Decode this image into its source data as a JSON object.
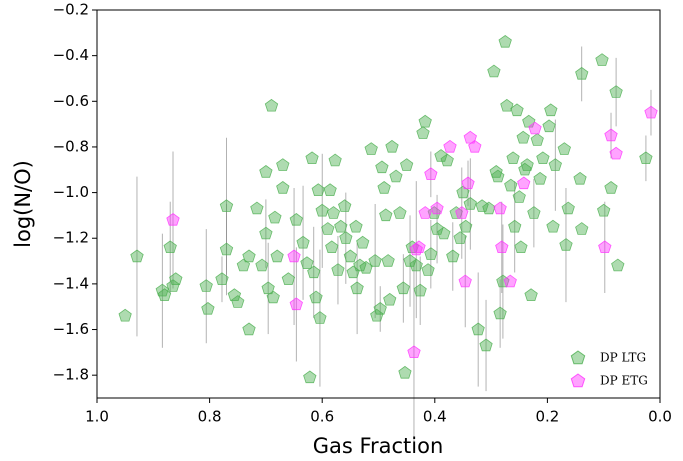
{
  "chart_data": {
    "type": "scatter",
    "xlabel": "Gas Fraction",
    "ylabel": "log(N/O)",
    "xlim": [
      1.0,
      0.0
    ],
    "ylim": [
      -1.9,
      -0.2
    ],
    "xticks": [
      {
        "value": 1,
        "label": "1.0"
      },
      0.8,
      0.6,
      0.4,
      0.2,
      {
        "value": 0,
        "label": "0.0"
      }
    ],
    "yticks": [
      {
        "value": -0.2,
        "label": "−0.2"
      },
      {
        "value": -0.4,
        "label": "−0.4"
      },
      {
        "value": -0.6,
        "label": "−0.6"
      },
      {
        "value": -0.8,
        "label": "−0.8"
      },
      {
        "value": -1.0,
        "label": "−1.0"
      },
      {
        "value": -1.2,
        "label": "−1.2"
      },
      {
        "value": -1.4,
        "label": "−1.4"
      },
      {
        "value": -1.6,
        "label": "−1.6"
      },
      {
        "value": -1.8,
        "label": "−1.8"
      }
    ],
    "legend": "lower right",
    "series": [
      {
        "name": "DP LTG",
        "color": "#4caf50",
        "x": [
          0.95,
          0.929,
          0.884,
          0.88,
          0.87,
          0.865,
          0.86,
          0.806,
          0.803,
          0.778,
          0.77,
          0.77,
          0.756,
          0.75,
          0.74,
          0.73,
          0.73,
          0.716,
          0.707,
          0.7,
          0.7,
          0.69,
          0.696,
          0.687,
          0.684,
          0.68,
          0.67,
          0.67,
          0.66,
          0.646,
          0.634,
          0.627,
          0.622,
          0.618,
          0.615,
          0.611,
          0.607,
          0.604,
          0.6,
          0.59,
          0.586,
          0.583,
          0.58,
          0.577,
          0.572,
          0.567,
          0.56,
          0.558,
          0.55,
          0.545,
          0.54,
          0.538,
          0.533,
          0.528,
          0.522,
          0.513,
          0.506,
          0.503,
          0.497,
          0.494,
          0.49,
          0.487,
          0.483,
          0.48,
          0.476,
          0.469,
          0.462,
          0.456,
          0.453,
          0.45,
          0.444,
          0.44,
          0.433,
          0.426,
          0.421,
          0.417,
          0.412,
          0.407,
          0.401,
          0.396,
          0.389,
          0.384,
          0.378,
          0.368,
          0.362,
          0.355,
          0.35,
          0.345,
          0.337,
          0.323,
          0.316,
          0.309,
          0.304,
          0.295,
          0.291,
          0.288,
          0.284,
          0.279,
          0.275,
          0.272,
          0.265,
          0.261,
          0.258,
          0.254,
          0.25,
          0.247,
          0.243,
          0.24,
          0.236,
          0.233,
          0.229,
          0.224,
          0.218,
          0.213,
          0.208,
          0.197,
          0.194,
          0.19,
          0.186,
          0.17,
          0.167,
          0.163,
          0.142,
          0.139,
          0.139,
          0.103,
          0.1,
          0.087,
          0.078,
          0.075,
          0.025
        ],
        "values": [
          -1.54,
          -1.28,
          -1.43,
          -1.45,
          -1.24,
          -1.41,
          -1.38,
          -1.41,
          -1.51,
          -1.38,
          -1.06,
          -1.25,
          -1.45,
          -1.48,
          -1.32,
          -1.28,
          -1.6,
          -1.07,
          -1.32,
          -1.18,
          -0.91,
          -0.62,
          -1.42,
          -1.46,
          -1.11,
          -1.28,
          -0.88,
          -0.98,
          -1.38,
          -1.12,
          -1.22,
          -1.31,
          -1.81,
          -0.85,
          -1.35,
          -1.46,
          -0.99,
          -1.55,
          -1.08,
          -1.16,
          -0.99,
          -1.24,
          -1.09,
          -0.86,
          -1.34,
          -1.15,
          -1.06,
          -1.2,
          -1.28,
          -1.35,
          -1.15,
          -1.42,
          -1.32,
          -1.22,
          -1.33,
          -0.81,
          -1.3,
          -1.54,
          -1.51,
          -0.89,
          -0.98,
          -1.1,
          -1.3,
          -1.47,
          -0.8,
          -0.93,
          -1.09,
          -1.42,
          -1.79,
          -0.88,
          -1.3,
          -1.24,
          -1.32,
          -1.43,
          -0.74,
          -0.69,
          -1.34,
          -1.27,
          -1.09,
          -1.16,
          -0.84,
          -1.18,
          -0.86,
          -1.28,
          -1.09,
          -1.2,
          -1.0,
          -1.15,
          -1.05,
          -1.6,
          -1.06,
          -1.67,
          -1.07,
          -0.47,
          -0.91,
          -0.93,
          -1.53,
          -1.39,
          -0.34,
          -0.62,
          -0.97,
          -0.85,
          -1.15,
          -0.64,
          -1.02,
          -1.24,
          -0.76,
          -0.9,
          -0.88,
          -0.69,
          -1.45,
          -1.09,
          -0.77,
          -0.94,
          -0.85,
          -0.71,
          -0.64,
          -1.15,
          -0.88,
          -0.81,
          -1.23,
          -1.07,
          -0.94,
          -1.16,
          -0.48,
          -0.42,
          -1.08,
          -0.98,
          -0.56,
          -1.32,
          -0.85
        ],
        "errors": [
          null,
          0.35,
          0.25,
          null,
          0.2,
          null,
          null,
          0.25,
          null,
          0.1,
          0.3,
          0.2,
          null,
          null,
          null,
          null,
          null,
          null,
          null,
          0.15,
          null,
          null,
          0.2,
          null,
          null,
          null,
          null,
          null,
          null,
          null,
          0.25,
          null,
          null,
          null,
          0.2,
          null,
          null,
          0.3,
          0.25,
          null,
          null,
          null,
          null,
          null,
          0.15,
          null,
          null,
          0.2,
          null,
          null,
          null,
          0.2,
          null,
          null,
          null,
          null,
          0.25,
          null,
          0.1,
          null,
          null,
          null,
          null,
          null,
          null,
          null,
          null,
          0.15,
          null,
          null,
          0.2,
          null,
          null,
          0.15,
          null,
          null,
          null,
          0.15,
          null,
          0.15,
          null,
          null,
          null,
          0.15,
          null,
          null,
          null,
          null,
          0.2,
          0.25,
          null,
          0.2,
          null,
          null,
          null,
          null,
          0.15,
          0.25,
          null,
          null,
          null,
          null,
          0.2,
          null,
          null,
          null,
          null,
          null,
          null,
          null,
          null,
          0.15,
          null,
          null,
          null,
          null,
          null,
          null,
          0.2,
          null,
          0.25,
          null,
          null,
          null,
          0.12,
          null,
          null,
          null,
          0.15,
          null,
          0.1
        ]
      },
      {
        "name": "DP ETG",
        "color": "#ff33ff",
        "x": [
          0.865,
          0.65,
          0.646,
          0.437,
          0.433,
          0.428,
          0.417,
          0.407,
          0.396,
          0.373,
          0.352,
          0.346,
          0.341,
          0.337,
          0.329,
          0.284,
          0.281,
          0.266,
          0.242,
          0.222,
          0.098,
          0.087,
          0.078,
          0.016
        ],
        "values": [
          -1.12,
          -1.28,
          -1.49,
          -1.7,
          -1.25,
          -1.24,
          -1.09,
          -0.92,
          -1.07,
          -0.8,
          -1.09,
          -1.39,
          -0.96,
          -0.76,
          -0.8,
          -1.07,
          -1.24,
          -1.39,
          -0.96,
          -0.72,
          -1.24,
          -0.75,
          -0.83,
          -0.65
        ],
        "errors": [
          0.3,
          0.3,
          0.25,
          0.4,
          0.3,
          null,
          null,
          0.1,
          null,
          null,
          0.2,
          0.2,
          0.1,
          null,
          null,
          null,
          0.2,
          null,
          null,
          null,
          0.2,
          0.1,
          null,
          0.1
        ]
      }
    ]
  }
}
